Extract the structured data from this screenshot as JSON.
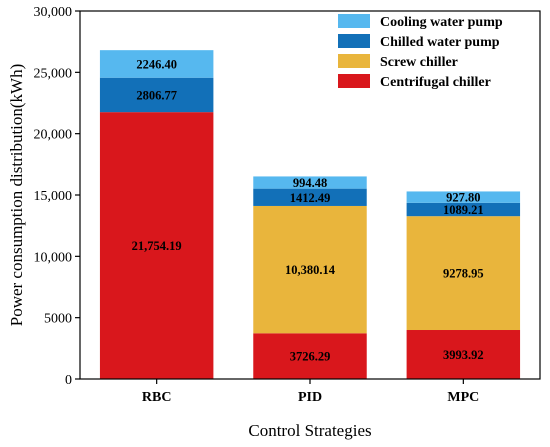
{
  "chart_data": {
    "type": "bar",
    "stacked": true,
    "categories": [
      "RBC",
      "PID",
      "MPC"
    ],
    "series": [
      {
        "name": "Centrifugal chiller",
        "color": "#d9171c",
        "values": [
          21754.19,
          3726.29,
          3993.92
        ],
        "labels": [
          "21,754.19",
          "3726.29",
          "3993.92"
        ]
      },
      {
        "name": "Screw chiller",
        "color": "#e9b53c",
        "values": [
          0,
          10380.14,
          9278.95
        ],
        "labels": [
          "",
          "10,380.14",
          "9278.95"
        ]
      },
      {
        "name": "Chilled water pump",
        "color": "#1270b8",
        "values": [
          2806.77,
          1412.49,
          1089.21
        ],
        "labels": [
          "2806.77",
          "1412.49",
          "1089.21"
        ]
      },
      {
        "name": "Cooling water pump",
        "color": "#56b8ef",
        "values": [
          2246.4,
          994.48,
          927.8
        ],
        "labels": [
          "2246.40",
          "994.48",
          "927.80"
        ]
      }
    ],
    "legend_order": [
      "Cooling water pump",
      "Chilled water pump",
      "Screw chiller",
      "Centrifugal chiller"
    ],
    "xlabel": "Control Strategies",
    "ylabel": "Power consumption distribution(kWh)",
    "ylim": [
      0,
      30000
    ],
    "yticks": [
      0,
      5000,
      10000,
      15000,
      20000,
      25000,
      30000
    ],
    "ytick_labels": [
      "0",
      "5000",
      "10,000",
      "15,000",
      "20,000",
      "25,000",
      "30,000"
    ],
    "legend_position": "top-right",
    "grid": false
  }
}
